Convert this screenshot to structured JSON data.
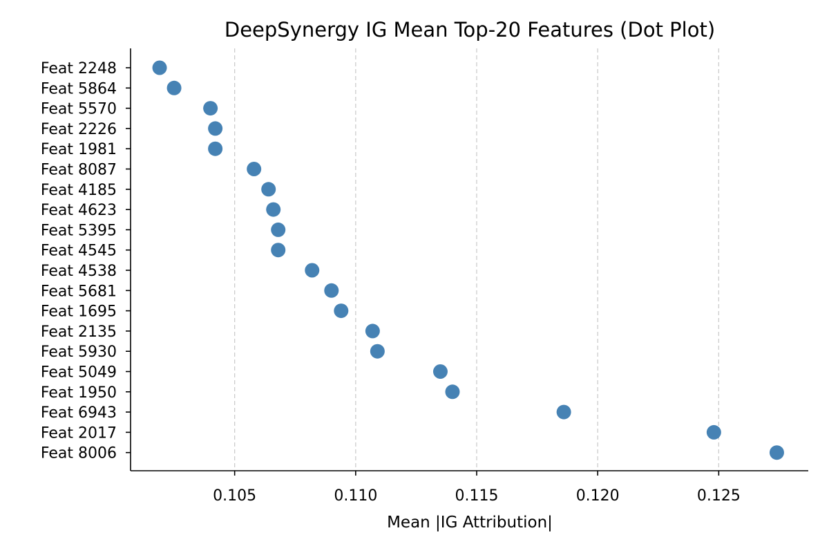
{
  "chart_data": {
    "type": "scatter",
    "title": "DeepSynergy IG Mean Top-20 Features (Dot Plot)",
    "xlabel": "Mean |IG Attribution|",
    "ylabel": "",
    "xlim": [
      0.1007,
      0.1287
    ],
    "xticks": [
      0.105,
      0.11,
      0.115,
      0.12,
      0.125
    ],
    "xtick_labels": [
      "0.105",
      "0.110",
      "0.115",
      "0.120",
      "0.125"
    ],
    "grid": "vertical dashed",
    "marker_color": "#4682b4",
    "categories": [
      "Feat 2248",
      "Feat 5864",
      "Feat 5570",
      "Feat 2226",
      "Feat 1981",
      "Feat 8087",
      "Feat 4185",
      "Feat 4623",
      "Feat 5395",
      "Feat 4545",
      "Feat 4538",
      "Feat 5681",
      "Feat 1695",
      "Feat 2135",
      "Feat 5930",
      "Feat 5049",
      "Feat 1950",
      "Feat 6943",
      "Feat 2017",
      "Feat 8006"
    ],
    "values": [
      0.1019,
      0.1025,
      0.104,
      0.1042,
      0.1042,
      0.1058,
      0.1064,
      0.1066,
      0.1068,
      0.1068,
      0.1082,
      0.109,
      0.1094,
      0.1107,
      0.1109,
      0.1135,
      0.114,
      0.1186,
      0.1248,
      0.1274
    ]
  }
}
